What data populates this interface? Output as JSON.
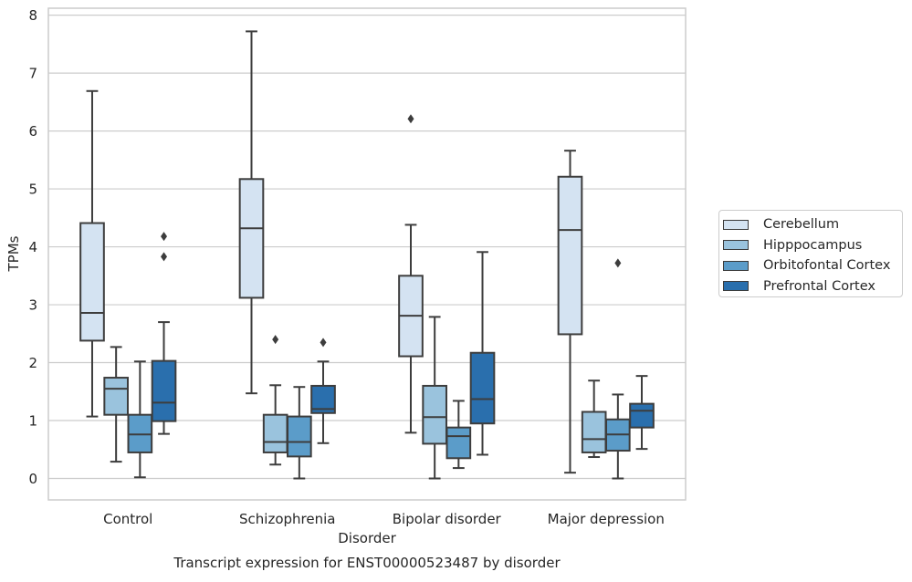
{
  "chart_data": {
    "type": "boxplot",
    "title": "Transcript expression for ENST00000523487 by disorder",
    "xlabel": "Disorder",
    "ylabel": "TPMs",
    "ylim": [
      -0.37,
      8.12
    ],
    "yticks": [
      "0",
      "1",
      "2",
      "3",
      "4",
      "5",
      "6",
      "7",
      "8"
    ],
    "grid": "horizontal",
    "legend_position": "right",
    "categories": [
      "Control",
      "Schizophrenia",
      "Bipolar disorder",
      "Major depression"
    ],
    "series": [
      {
        "name": "Cerebellum",
        "color": "#d4e3f2",
        "boxes": [
          {
            "whisker_low": 1.07,
            "q1": 2.38,
            "median": 2.86,
            "q3": 4.41,
            "whisker_high": 6.69,
            "outliers": []
          },
          {
            "whisker_low": 1.47,
            "q1": 3.12,
            "median": 4.32,
            "q3": 5.17,
            "whisker_high": 7.72,
            "outliers": []
          },
          {
            "whisker_low": 0.79,
            "q1": 2.11,
            "median": 2.81,
            "q3": 3.5,
            "whisker_high": 4.38,
            "outliers": [
              6.21
            ]
          },
          {
            "whisker_low": 0.1,
            "q1": 2.49,
            "median": 4.29,
            "q3": 5.21,
            "whisker_high": 5.66,
            "outliers": []
          }
        ]
      },
      {
        "name": "Hipppocampus",
        "color": "#9ac3dd",
        "boxes": [
          {
            "whisker_low": 0.29,
            "q1": 1.1,
            "median": 1.55,
            "q3": 1.74,
            "whisker_high": 2.27,
            "outliers": []
          },
          {
            "whisker_low": 0.24,
            "q1": 0.45,
            "median": 0.63,
            "q3": 1.1,
            "whisker_high": 1.61,
            "outliers": [
              2.4
            ]
          },
          {
            "whisker_low": 0.0,
            "q1": 0.6,
            "median": 1.06,
            "q3": 1.6,
            "whisker_high": 2.79,
            "outliers": []
          },
          {
            "whisker_low": 0.37,
            "q1": 0.45,
            "median": 0.68,
            "q3": 1.15,
            "whisker_high": 1.69,
            "outliers": []
          }
        ]
      },
      {
        "name": "Orbitofontal Cortex",
        "color": "#5b9cc9",
        "boxes": [
          {
            "whisker_low": 0.02,
            "q1": 0.45,
            "median": 0.76,
            "q3": 1.1,
            "whisker_high": 2.02,
            "outliers": []
          },
          {
            "whisker_low": 0.0,
            "q1": 0.38,
            "median": 0.63,
            "q3": 1.07,
            "whisker_high": 1.58,
            "outliers": []
          },
          {
            "whisker_low": 0.18,
            "q1": 0.35,
            "median": 0.73,
            "q3": 0.88,
            "whisker_high": 1.34,
            "outliers": []
          },
          {
            "whisker_low": 0.0,
            "q1": 0.48,
            "median": 0.76,
            "q3": 1.02,
            "whisker_high": 1.45,
            "outliers": [
              3.72
            ]
          }
        ]
      },
      {
        "name": "Prefrontal Cortex",
        "color": "#2a6fad",
        "boxes": [
          {
            "whisker_low": 0.77,
            "q1": 0.99,
            "median": 1.31,
            "q3": 2.03,
            "whisker_high": 2.7,
            "outliers": [
              3.83,
              4.18
            ]
          },
          {
            "whisker_low": 0.61,
            "q1": 1.13,
            "median": 1.2,
            "q3": 1.6,
            "whisker_high": 2.02,
            "outliers": [
              2.35
            ]
          },
          {
            "whisker_low": 0.41,
            "q1": 0.95,
            "median": 1.37,
            "q3": 2.17,
            "whisker_high": 3.91,
            "outliers": []
          },
          {
            "whisker_low": 0.51,
            "q1": 0.88,
            "median": 1.17,
            "q3": 1.29,
            "whisker_high": 1.77,
            "outliers": []
          }
        ]
      }
    ]
  }
}
